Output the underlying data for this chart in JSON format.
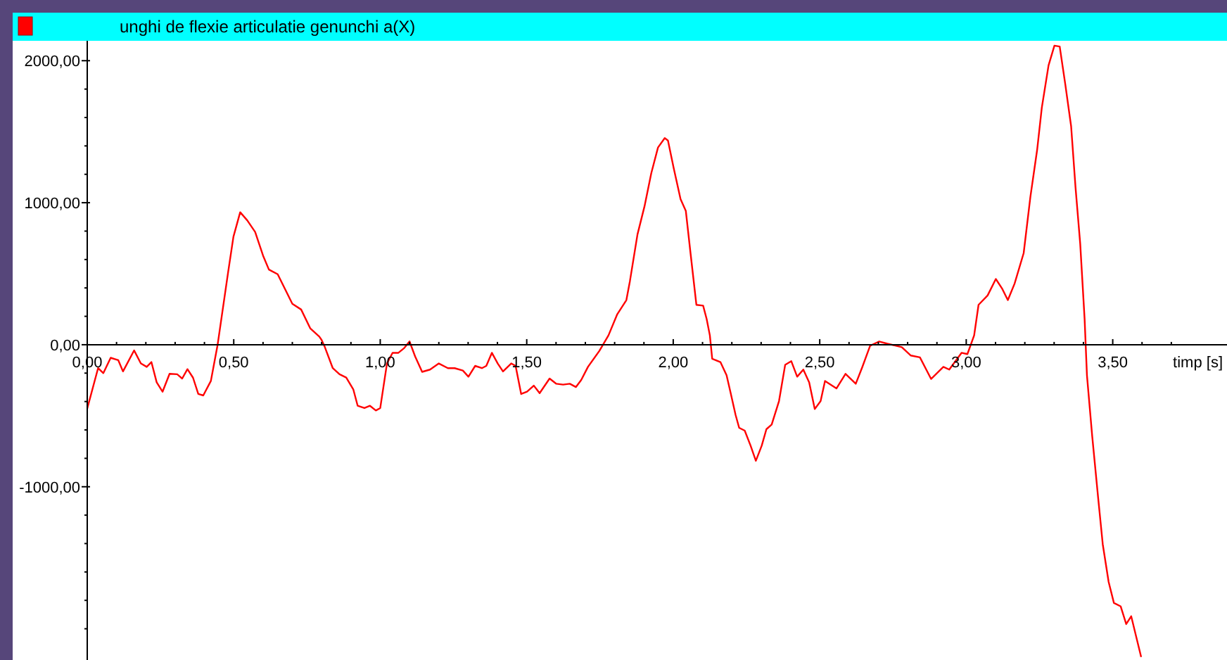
{
  "chart_data": {
    "type": "line",
    "title": "unghi de flexie articulatie genunchi  a(X)",
    "xlabel": "timp [s]",
    "xlim": [
      0,
      3.89
    ],
    "ylim": [
      -2220,
      2140
    ],
    "xticks": [
      {
        "value": 0,
        "label": "0,00"
      },
      {
        "value": 0.1,
        "label": null
      },
      {
        "value": 0.2,
        "label": null
      },
      {
        "value": 0.3,
        "label": null
      },
      {
        "value": 0.4,
        "label": null
      },
      {
        "value": 0.5,
        "label": "0,50"
      },
      {
        "value": 0.6,
        "label": null
      },
      {
        "value": 0.7,
        "label": null
      },
      {
        "value": 0.8,
        "label": null
      },
      {
        "value": 0.9,
        "label": null
      },
      {
        "value": 1,
        "label": "1,00"
      },
      {
        "value": 1.1,
        "label": null
      },
      {
        "value": 1.2,
        "label": null
      },
      {
        "value": 1.3,
        "label": null
      },
      {
        "value": 1.4,
        "label": null
      },
      {
        "value": 1.5,
        "label": "1,50"
      },
      {
        "value": 1.6,
        "label": null
      },
      {
        "value": 1.7,
        "label": null
      },
      {
        "value": 1.8,
        "label": null
      },
      {
        "value": 1.9,
        "label": null
      },
      {
        "value": 2,
        "label": "2,00"
      },
      {
        "value": 2.1,
        "label": null
      },
      {
        "value": 2.2,
        "label": null
      },
      {
        "value": 2.3,
        "label": null
      },
      {
        "value": 2.4,
        "label": null
      },
      {
        "value": 2.5,
        "label": "2,50"
      },
      {
        "value": 2.6,
        "label": null
      },
      {
        "value": 2.7,
        "label": null
      },
      {
        "value": 2.8,
        "label": null
      },
      {
        "value": 2.9,
        "label": null
      },
      {
        "value": 3,
        "label": "3,00"
      },
      {
        "value": 3.1,
        "label": null
      },
      {
        "value": 3.2,
        "label": null
      },
      {
        "value": 3.3,
        "label": null
      },
      {
        "value": 3.4,
        "label": null
      },
      {
        "value": 3.5,
        "label": "3,50"
      },
      {
        "value": 3.6,
        "label": null
      },
      {
        "value": 3.7,
        "label": null
      }
    ],
    "yticks": [
      {
        "value": -2000,
        "label": null
      },
      {
        "value": -1800,
        "label": null
      },
      {
        "value": -1600,
        "label": null
      },
      {
        "value": -1400,
        "label": null
      },
      {
        "value": -1200,
        "label": null
      },
      {
        "value": -1000,
        "label": "-1000,00"
      },
      {
        "value": -800,
        "label": null
      },
      {
        "value": -600,
        "label": null
      },
      {
        "value": -400,
        "label": null
      },
      {
        "value": -200,
        "label": null
      },
      {
        "value": 0,
        "label": "0,00"
      },
      {
        "value": 200,
        "label": null
      },
      {
        "value": 400,
        "label": null
      },
      {
        "value": 600,
        "label": null
      },
      {
        "value": 800,
        "label": null
      },
      {
        "value": 1000,
        "label": "1000,00"
      },
      {
        "value": 1200,
        "label": null
      },
      {
        "value": 1400,
        "label": null
      },
      {
        "value": 1600,
        "label": null
      },
      {
        "value": 1800,
        "label": null
      },
      {
        "value": 2000,
        "label": "2000,00"
      }
    ],
    "grid": false,
    "marker": "none",
    "line_style": "solid",
    "series": [
      {
        "color": "#ff0000",
        "x": [
          0,
          0.037,
          0.055,
          0.08,
          0.106,
          0.122,
          0.16,
          0.183,
          0.203,
          0.219,
          0.237,
          0.257,
          0.281,
          0.307,
          0.324,
          0.342,
          0.361,
          0.379,
          0.396,
          0.422,
          0.445,
          0.481,
          0.499,
          0.522,
          0.546,
          0.573,
          0.6,
          0.62,
          0.65,
          0.7,
          0.73,
          0.761,
          0.792,
          0.8,
          0.811,
          0.838,
          0.861,
          0.884,
          0.908,
          0.923,
          0.946,
          0.965,
          0.985,
          1,
          1.023,
          1.042,
          1.062,
          1.082,
          1.1,
          1.119,
          1.143,
          1.17,
          1.2,
          1.231,
          1.254,
          1.282,
          1.301,
          1.324,
          1.347,
          1.362,
          1.381,
          1.401,
          1.419,
          1.447,
          1.462,
          1.481,
          1.501,
          1.524,
          1.544,
          1.578,
          1.601,
          1.624,
          1.647,
          1.668,
          1.686,
          1.709,
          1.748,
          1.779,
          1.809,
          1.84,
          1.852,
          1.878,
          1.902,
          1.925,
          1.948,
          1.971,
          1.982,
          2.002,
          2.025,
          2.043,
          2.059,
          2.079,
          2.102,
          2.114,
          2.125,
          2.133,
          2.161,
          2.182,
          2.195,
          2.213,
          2.225,
          2.244,
          2.264,
          2.282,
          2.302,
          2.318,
          2.336,
          2.361,
          2.382,
          2.403,
          2.423,
          2.444,
          2.464,
          2.483,
          2.503,
          2.518,
          2.557,
          2.588,
          2.623,
          2.645,
          2.672,
          2.703,
          2.731,
          2.78,
          2.811,
          2.842,
          2.88,
          2.922,
          2.942,
          2.984,
          3.004,
          3.027,
          3.042,
          3.073,
          3.101,
          3.122,
          3.142,
          3.165,
          3.196,
          3.219,
          3.242,
          3.258,
          3.281,
          3.301,
          3.319,
          3.338,
          3.358,
          3.373,
          3.389,
          3.404,
          3.412,
          3.43,
          3.45,
          3.466,
          3.486,
          3.504,
          3.527,
          3.546,
          3.563,
          3.597
        ],
        "values": [
          -450,
          -165,
          -200,
          -92,
          -109,
          -188,
          -40,
          -132,
          -156,
          -122,
          -265,
          -331,
          -205,
          -208,
          -238,
          -172,
          -232,
          -347,
          -357,
          -255,
          0,
          513,
          761,
          933,
          876,
          794,
          628,
          529,
          496,
          288,
          248,
          116,
          57,
          33,
          -17,
          -165,
          -208,
          -231,
          -314,
          -430,
          -446,
          -430,
          -463,
          -446,
          -132,
          -57,
          -57,
          -23,
          23,
          -82,
          -191,
          -175,
          -132,
          -165,
          -165,
          -182,
          -225,
          -149,
          -165,
          -149,
          -57,
          -132,
          -188,
          -132,
          -149,
          -347,
          -331,
          -288,
          -341,
          -238,
          -275,
          -281,
          -275,
          -298,
          -248,
          -156,
          -43,
          66,
          215,
          314,
          446,
          777,
          975,
          1207,
          1389,
          1455,
          1438,
          1240,
          1025,
          942,
          645,
          281,
          275,
          182,
          66,
          -99,
          -122,
          -215,
          -331,
          -496,
          -585,
          -605,
          -711,
          -817,
          -711,
          -595,
          -562,
          -397,
          -142,
          -116,
          -225,
          -175,
          -265,
          -453,
          -397,
          -255,
          -308,
          -205,
          -275,
          -159,
          -7,
          23,
          7,
          -17,
          -76,
          -89,
          -241,
          -156,
          -175,
          -57,
          -66,
          66,
          281,
          347,
          463,
          397,
          314,
          430,
          645,
          1042,
          1372,
          1670,
          1967,
          2106,
          2100,
          1835,
          1538,
          1108,
          711,
          182,
          -215,
          -645,
          -1074,
          -1406,
          -1670,
          -1818,
          -1842,
          -1967,
          -1912,
          -2199
        ]
      }
    ]
  }
}
